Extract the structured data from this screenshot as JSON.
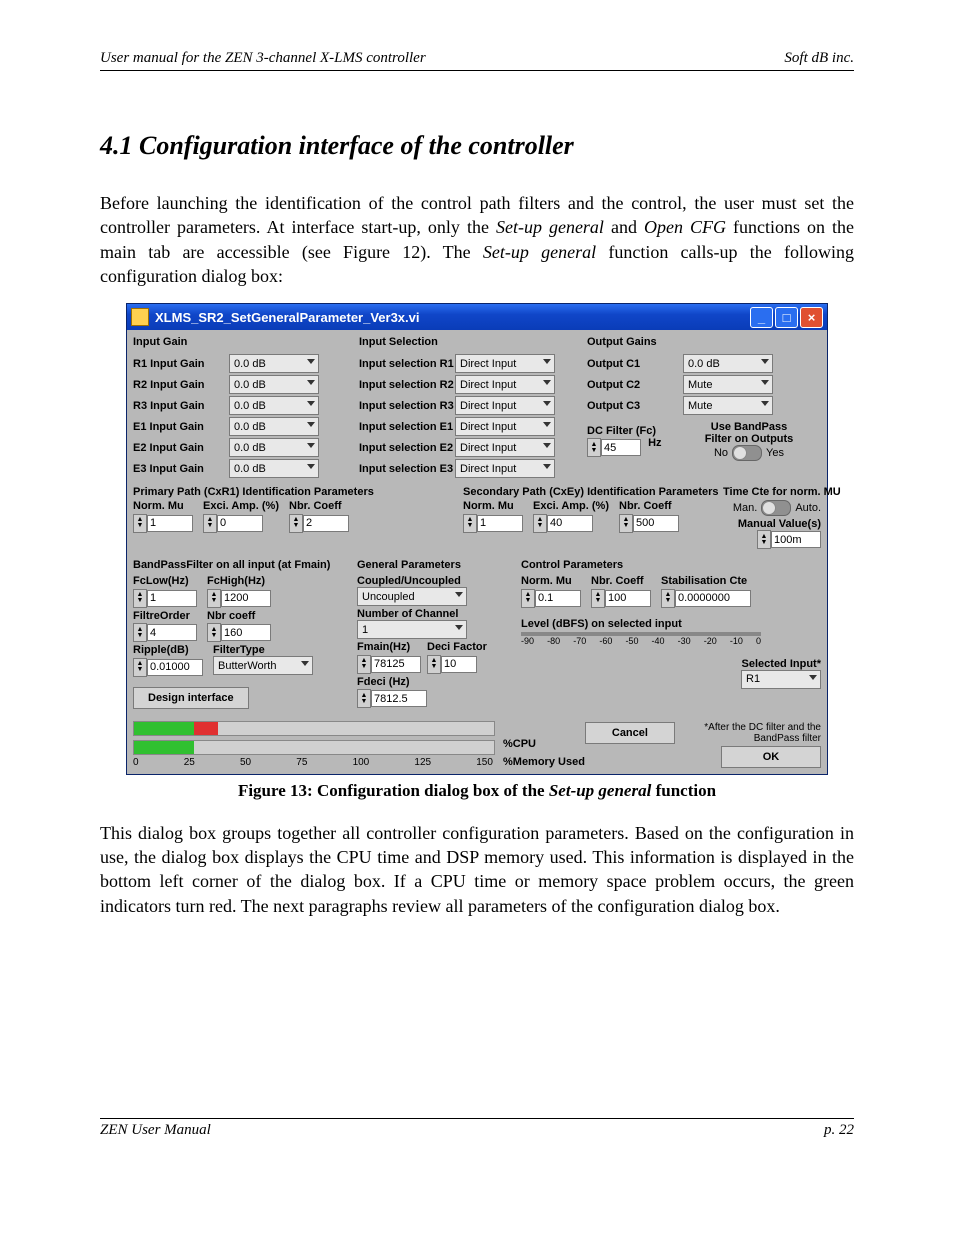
{
  "header": {
    "left": "User manual for the ZEN 3-channel X-LMS controller",
    "right": "Soft dB inc."
  },
  "section_title": "4.1 Configuration interface of the controller",
  "para1_a": "Before launching the identification of the control path filters and the control, the user must set the controller parameters. At interface start-up, only the ",
  "para1_i1": "Set-up general",
  "para1_b": " and ",
  "para1_i2": "Open CFG",
  "para1_c": " functions on the main tab are accessible (see Figure 12). The ",
  "para1_i3": "Set-up general",
  "para1_d": " function calls-up the following configuration dialog box:",
  "fig_a": "Figure 13: Configuration dialog box of the ",
  "fig_i": "Set-up general",
  "fig_b": " function",
  "para2": "This dialog box groups together all controller configuration parameters. Based on the configuration in use, the dialog box displays the CPU time and DSP memory used. This information is displayed in the bottom left corner of the dialog box. If a CPU time or memory space problem occurs, the green indicators turn red. The next paragraphs review all parameters of the configuration dialog box.",
  "footer": {
    "left": "ZEN User Manual",
    "right": "p. 22"
  },
  "dlg": {
    "title": "XLMS_SR2_SetGeneralParameter_Ver3x.vi",
    "sections": {
      "ig": "Input Gain",
      "is": "Input Selection",
      "og": "Output Gains"
    },
    "input_gains": [
      {
        "lbl": "R1 Input Gain",
        "val": "0.0 dB"
      },
      {
        "lbl": "R2 Input Gain",
        "val": "0.0 dB"
      },
      {
        "lbl": "R3 Input Gain",
        "val": "0.0 dB"
      },
      {
        "lbl": "E1 Input Gain",
        "val": "0.0 dB"
      },
      {
        "lbl": "E2 Input Gain",
        "val": "0.0 dB"
      },
      {
        "lbl": "E3 Input Gain",
        "val": "0.0 dB"
      }
    ],
    "input_sel": [
      {
        "lbl": "Input selection R1",
        "val": "Direct Input"
      },
      {
        "lbl": "Input selection R2",
        "val": "Direct Input"
      },
      {
        "lbl": "Input selection R3",
        "val": "Direct Input"
      },
      {
        "lbl": "Input selection E1",
        "val": "Direct Input"
      },
      {
        "lbl": "Input selection E2",
        "val": "Direct Input"
      },
      {
        "lbl": "Input selection E3",
        "val": "Direct Input"
      }
    ],
    "output_gains": [
      {
        "lbl": "Output C1",
        "val": "0.0 dB"
      },
      {
        "lbl": "Output C2",
        "val": "Mute"
      },
      {
        "lbl": "Output C3",
        "val": "Mute"
      }
    ],
    "dc": {
      "lbl": "DC Filter (Fc)",
      "val": "45",
      "unit": "Hz"
    },
    "bp": {
      "l1": "Use BandPass",
      "l2": "Filter on Outputs",
      "no": "No",
      "yes": "Yes"
    },
    "primary": {
      "hdr": "Primary Path (CxR1) Identification Parameters",
      "mu_lbl": "Norm. Mu",
      "mu": "1",
      "amp_lbl": "Exci. Amp. (%)",
      "amp": "0",
      "nc_lbl": "Nbr. Coeff",
      "nc": "2"
    },
    "secondary": {
      "hdr": "Secondary Path (CxEy) Identification Parameters",
      "mu_lbl": "Norm. Mu",
      "mu": "1",
      "amp_lbl": "Exci. Amp. (%)",
      "amp": "40",
      "nc_lbl": "Nbr. Coeff",
      "nc": "500"
    },
    "tcte": {
      "lbl": "Time Cte for norm. MU",
      "man": "Man.",
      "auto": "Auto.",
      "mv_lbl": "Manual Value(s)",
      "mv": "100m"
    },
    "bpf": {
      "hdr": "BandPassFilter on all input (at Fmain)",
      "fcl_lbl": "FcLow(Hz)",
      "fcl": "1",
      "fch_lbl": "FcHigh(Hz)",
      "fch": "1200",
      "fo_lbl": "FiltreOrder",
      "fo": "4",
      "nc_lbl": "Nbr coeff",
      "nc": "160",
      "rp_lbl": "Ripple(dB)",
      "rp": "0.01000",
      "ft_lbl": "FilterType",
      "ft": "ButterWorth",
      "design": "Design interface"
    },
    "gp": {
      "hdr": "General Parameters",
      "cu_lbl": "Coupled/Uncoupled",
      "cu": "Uncoupled",
      "nch_lbl": "Number of Channel",
      "nch": "1",
      "fm_lbl": "Fmain(Hz)",
      "fm": "78125",
      "df_lbl": "Deci Factor",
      "df": "10",
      "fd_lbl": "Fdeci (Hz)",
      "fd": "7812.5"
    },
    "cp": {
      "hdr": "Control Parameters",
      "mu_lbl": "Norm. Mu",
      "mu": "0.1",
      "nc_lbl": "Nbr. Coeff",
      "nc": "100",
      "sc_lbl": "Stabilisation Cte",
      "sc": "0.0000000"
    },
    "lvl": {
      "lbl": "Level (dBFS) on selected input",
      "ticks": [
        "-90",
        "-80",
        "-70",
        "-60",
        "-50",
        "-40",
        "-30",
        "-20",
        "-10",
        "0"
      ],
      "sel_lbl": "Selected Input*",
      "sel": "R1",
      "note": "*After the DC filter and the BandPass filter"
    },
    "prog": {
      "cpu": "%CPU",
      "mem": "%Memory Used",
      "ticks": [
        "0",
        "25",
        "50",
        "75",
        "100",
        "125",
        "150"
      ]
    },
    "btns": {
      "cancel": "Cancel",
      "ok": "OK"
    }
  }
}
